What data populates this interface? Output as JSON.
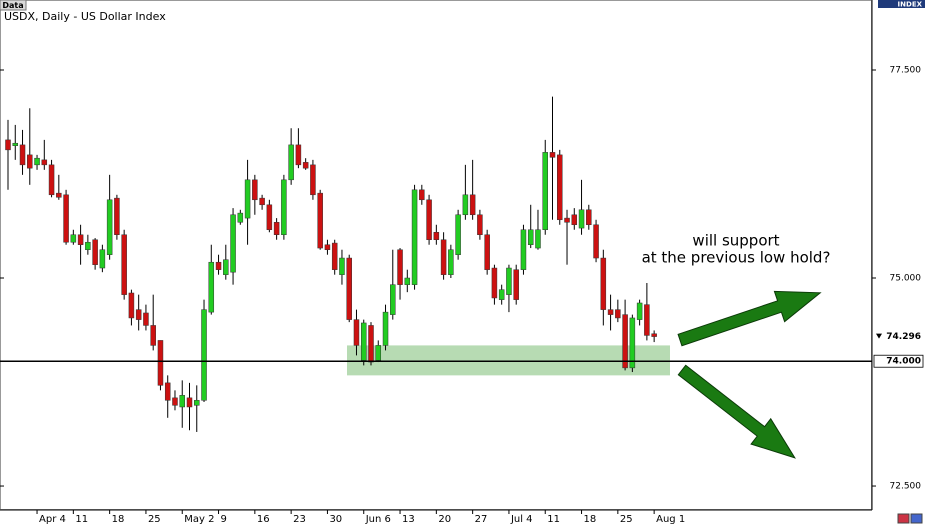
{
  "chart_data": {
    "type": "candlestick",
    "tab": "Data",
    "title": "USDX, Daily - US Dollar Index",
    "axis_badge": "INDEX",
    "annotation": [
      "will support",
      "at the previous low hold?"
    ],
    "up_color": "#22cc22",
    "down_color": "#cc1111",
    "ylim": [
      72.236,
      78.245
    ],
    "yticks": [
      {
        "value": 72.5,
        "label": "72.500"
      },
      {
        "value": 75,
        "label": "75.000"
      },
      {
        "value": 77.5,
        "label": "77.500"
      }
    ],
    "level": {
      "value": 74,
      "label": "74.000"
    },
    "support_zone": [
      73.83,
      74.19
    ],
    "categories": [
      null,
      null,
      null,
      null,
      "Apr 4",
      null,
      null,
      null,
      null,
      "11",
      null,
      null,
      null,
      null,
      "18",
      null,
      null,
      null,
      null,
      "25",
      null,
      null,
      null,
      null,
      "May 2",
      null,
      null,
      null,
      null,
      "9",
      null,
      null,
      null,
      null,
      "16",
      null,
      null,
      null,
      null,
      "23",
      null,
      null,
      null,
      null,
      "30",
      null,
      null,
      null,
      null,
      "Jun 6",
      null,
      null,
      null,
      null,
      "13",
      null,
      null,
      null,
      null,
      "20",
      null,
      null,
      null,
      null,
      "27",
      null,
      null,
      null,
      null,
      "Jul 4",
      null,
      null,
      null,
      null,
      "11",
      null,
      null,
      null,
      null,
      "18",
      null,
      null,
      null,
      null,
      "25",
      null,
      null,
      null,
      null,
      "Aug 1"
    ],
    "open": [
      76.66,
      76.59,
      76.6,
      76.48,
      76.36,
      76.42,
      76.36,
      76.02,
      76.0,
      75.43,
      75.52,
      75.34,
      75.46,
      75.12,
      75.28,
      75.96,
      75.52,
      74.82,
      74.62,
      74.58,
      74.43,
      74.25,
      73.74,
      73.56,
      73.45,
      73.56,
      73.47,
      73.53,
      74.59,
      75.19,
      75.04,
      75.07,
      75.67,
      75.72,
      76.18,
      75.96,
      75.88,
      75.67,
      75.52,
      76.18,
      76.6,
      76.39,
      76.36,
      76.02,
      75.4,
      75.42,
      75.04,
      75.24,
      74.5,
      74.01,
      74.43,
      74.01,
      74.19,
      74.56,
      75.34,
      74.92,
      74.92,
      76.06,
      75.94,
      75.55,
      75.46,
      75.04,
      75.28,
      75.76,
      76.0,
      75.76,
      75.52,
      75.12,
      74.74,
      74.8,
      75.1,
      75.1,
      75.4,
      75.36,
      75.58,
      76.51,
      76.48,
      75.72,
      75.76,
      75.6,
      75.82,
      75.64,
      75.24,
      74.62,
      74.62,
      74.56,
      73.92,
      74.5,
      74.68,
      74.33
    ],
    "high": [
      76.9,
      76.84,
      76.78,
      77.04,
      76.48,
      76.66,
      76.42,
      76.24,
      76.06,
      75.58,
      75.64,
      75.52,
      75.48,
      75.4,
      76.24,
      76.0,
      75.58,
      74.86,
      74.8,
      74.68,
      74.8,
      74.25,
      73.83,
      73.65,
      73.77,
      73.74,
      73.71,
      74.74,
      75.4,
      75.28,
      75.4,
      75.84,
      75.82,
      76.42,
      76.24,
      76.0,
      75.94,
      75.72,
      76.24,
      76.8,
      76.8,
      76.44,
      76.42,
      76.06,
      75.46,
      75.46,
      75.34,
      75.28,
      74.62,
      74.5,
      74.47,
      74.25,
      74.68,
      75.34,
      75.36,
      75.1,
      76.12,
      76.12,
      76.0,
      75.64,
      75.55,
      75.4,
      75.82,
      76.36,
      76.42,
      75.82,
      75.58,
      75.16,
      74.92,
      75.16,
      75.16,
      75.64,
      75.88,
      75.82,
      76.66,
      77.18,
      76.54,
      75.82,
      75.84,
      76.18,
      75.88,
      75.7,
      75.34,
      74.8,
      74.74,
      74.74,
      74.56,
      74.74,
      74.94,
      74.37
    ],
    "low": [
      76.06,
      76.42,
      76.24,
      76.12,
      76.3,
      76.3,
      75.97,
      75.94,
      75.4,
      75.4,
      75.16,
      75.28,
      75.1,
      75.07,
      75.22,
      75.46,
      74.74,
      74.43,
      74.37,
      74.37,
      74.13,
      73.65,
      73.32,
      73.41,
      73.2,
      73.17,
      73.15,
      73.51,
      74.56,
      75.04,
      74.98,
      74.92,
      75.64,
      75.4,
      75.76,
      75.82,
      75.55,
      75.46,
      75.46,
      76.12,
      76.32,
      76.3,
      75.94,
      75.34,
      75.28,
      75.04,
      74.92,
      74.47,
      74.07,
      73.95,
      73.95,
      73.99,
      74.13,
      74.5,
      74.74,
      74.83,
      74.86,
      75.88,
      75.4,
      75.4,
      74.98,
      75.0,
      75.22,
      75.7,
      75.7,
      75.46,
      75.04,
      74.68,
      74.68,
      74.59,
      74.68,
      75.04,
      75.36,
      75.34,
      75.52,
      75.7,
      75.64,
      75.16,
      75.58,
      75.52,
      75.58,
      75.19,
      74.43,
      74.37,
      74.47,
      73.89,
      73.87,
      74.43,
      74.25,
      74.23
    ],
    "close": [
      76.54,
      76.62,
      76.36,
      76.32,
      76.44,
      76.36,
      76.0,
      75.97,
      75.43,
      75.52,
      75.4,
      75.43,
      75.16,
      75.34,
      75.94,
      75.52,
      74.8,
      74.52,
      74.5,
      74.43,
      74.19,
      73.71,
      73.53,
      73.47,
      73.59,
      73.45,
      73.53,
      74.62,
      75.19,
      75.1,
      75.22,
      75.76,
      75.78,
      76.18,
      75.94,
      75.88,
      75.58,
      75.52,
      76.18,
      76.6,
      76.36,
      76.32,
      76.0,
      75.36,
      75.34,
      75.1,
      75.24,
      74.5,
      74.19,
      74.46,
      73.99,
      74.19,
      74.59,
      74.92,
      74.92,
      75.0,
      76.06,
      75.94,
      75.46,
      75.46,
      75.04,
      75.34,
      75.76,
      76.0,
      75.76,
      75.52,
      75.1,
      74.76,
      74.86,
      75.12,
      74.74,
      75.58,
      75.58,
      75.58,
      76.51,
      76.45,
      75.7,
      75.67,
      75.64,
      75.82,
      75.64,
      75.24,
      74.62,
      74.56,
      74.52,
      73.92,
      74.52,
      74.7,
      74.31,
      74.296
    ]
  }
}
